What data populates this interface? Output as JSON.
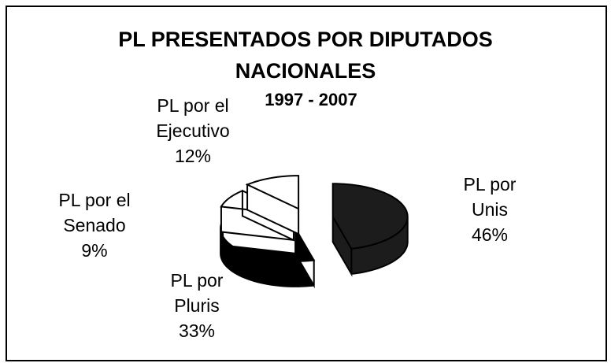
{
  "chart_data": {
    "type": "pie",
    "title": "PL PRESENTADOS POR DIPUTADOS NACIONALES",
    "subtitle": "1997 - 2007",
    "categories": [
      "PL por Unis",
      "PL por Pluris",
      "PL por el Senado",
      "PL por el Ejecutivo"
    ],
    "values": [
      46,
      33,
      9,
      12
    ],
    "value_labels": [
      "46%",
      "33%",
      "9%",
      "12%"
    ],
    "colors": [
      "#1c1c1c",
      "#000000",
      "#ffffff",
      "#ffffff"
    ]
  }
}
